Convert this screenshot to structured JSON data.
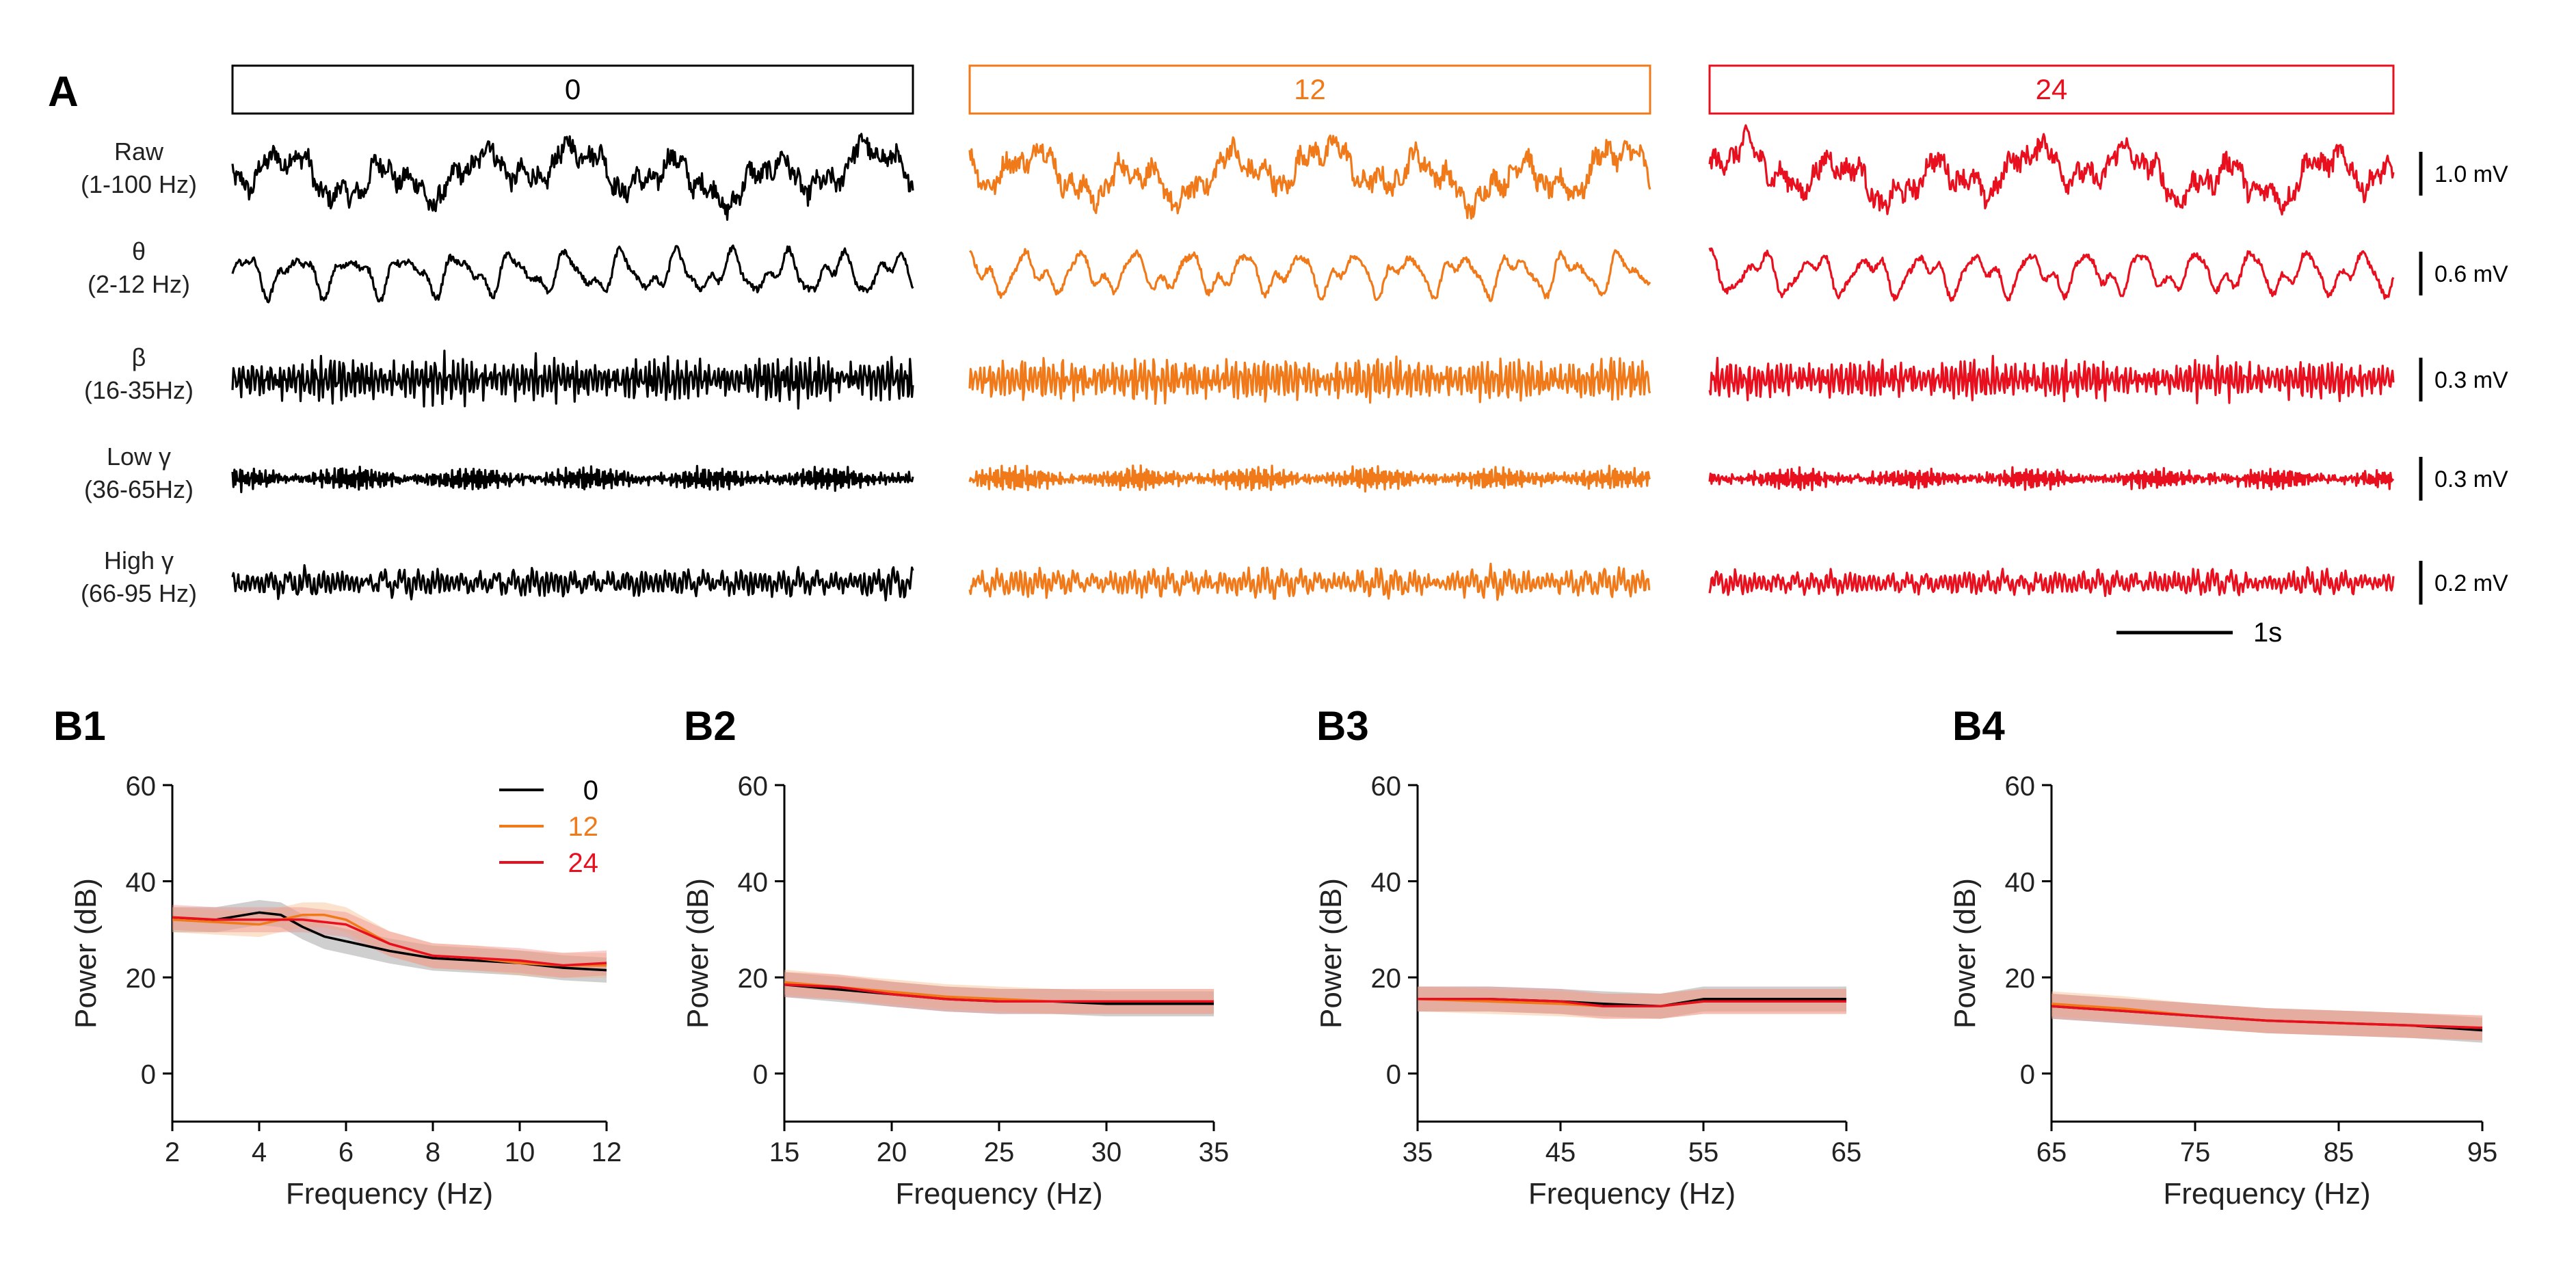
{
  "panel_a": {
    "label": "A",
    "conditions": [
      {
        "name": "0",
        "color": "#000000"
      },
      {
        "name": "12",
        "color": "#f07a1a"
      },
      {
        "name": "24",
        "color": "#e8101e"
      }
    ],
    "bands": [
      {
        "line1": "Raw",
        "line2": "(1-100 Hz)",
        "scale": "1.0 mV"
      },
      {
        "line1": "θ",
        "line2": "(2-12 Hz)",
        "scale": "0.6 mV"
      },
      {
        "line1": "β",
        "line2": "(16-35Hz)",
        "scale": "0.3 mV"
      },
      {
        "line1": "Low γ",
        "line2": "(36-65Hz)",
        "scale": "0.3 mV"
      },
      {
        "line1": "High γ",
        "line2": "(66-95 Hz)",
        "scale": "0.2 mV"
      }
    ],
    "time_scale_label": "1s"
  },
  "chart_data": [
    {
      "type": "line",
      "panel": "B1",
      "xlabel": "Frequency (Hz)",
      "ylabel": "Power (dB)",
      "xlim": [
        2,
        12
      ],
      "ylim": [
        -10,
        60
      ],
      "xticks": [
        2,
        4,
        6,
        8,
        10,
        12
      ],
      "yticks": [
        0,
        20,
        40,
        60
      ],
      "legend": [
        "0",
        "12",
        "24"
      ],
      "legend_position": "top-right",
      "series": [
        {
          "name": "0",
          "color": "#000000",
          "band": "#888888",
          "x": [
            2,
            3,
            4,
            4.5,
            5,
            5.5,
            6,
            7,
            8,
            9,
            10,
            11,
            12
          ],
          "values": [
            32,
            32,
            33.5,
            33,
            30.5,
            28.5,
            27.5,
            25.5,
            24,
            23.5,
            23,
            22,
            21.5
          ]
        },
        {
          "name": "12",
          "color": "#f07a1a",
          "band": "#f5b780",
          "x": [
            2,
            3,
            4,
            5,
            5.5,
            6,
            7,
            8,
            9,
            10,
            11,
            12
          ],
          "values": [
            32,
            31.5,
            31,
            33,
            33,
            32,
            27,
            24.5,
            24,
            23,
            22.5,
            22.5
          ]
        },
        {
          "name": "24",
          "color": "#e8101e",
          "band": "#f08a8a",
          "x": [
            2,
            3,
            4,
            5,
            6,
            7,
            8,
            9,
            10,
            11,
            12
          ],
          "values": [
            32.5,
            32,
            32,
            32,
            31,
            27,
            24.5,
            24,
            23.5,
            22.5,
            23
          ]
        }
      ]
    },
    {
      "type": "line",
      "panel": "B2",
      "xlabel": "Frequency (Hz)",
      "ylabel": "Power (dB)",
      "xlim": [
        15,
        35
      ],
      "ylim": [
        -10,
        60
      ],
      "xticks": [
        15,
        20,
        25,
        30,
        35
      ],
      "yticks": [
        0,
        20,
        40,
        60
      ],
      "series": [
        {
          "name": "0",
          "color": "#000000",
          "band": "#888888",
          "x": [
            15,
            17.5,
            20,
            22.5,
            25,
            27.5,
            30,
            32.5,
            35
          ],
          "values": [
            18.5,
            17.5,
            16.5,
            15.5,
            15,
            15,
            14.5,
            14.5,
            14.5
          ]
        },
        {
          "name": "12",
          "color": "#f07a1a",
          "band": "#f5b780",
          "x": [
            15,
            17.5,
            20,
            22.5,
            25,
            27.5,
            30,
            32.5,
            35
          ],
          "values": [
            19,
            18,
            17,
            16,
            15.5,
            15,
            15,
            15,
            15
          ]
        },
        {
          "name": "24",
          "color": "#e8101e",
          "band": "#f08a8a",
          "x": [
            15,
            17.5,
            20,
            22.5,
            25,
            27.5,
            30,
            32.5,
            35
          ],
          "values": [
            18.5,
            18,
            16.5,
            15.5,
            15,
            15,
            15,
            15,
            15
          ]
        }
      ]
    },
    {
      "type": "line",
      "panel": "B3",
      "xlabel": "Frequency (Hz)",
      "ylabel": "Power (dB)",
      "xlim": [
        35,
        65
      ],
      "ylim": [
        -10,
        60
      ],
      "xticks": [
        35,
        45,
        55,
        65
      ],
      "yticks": [
        0,
        20,
        40,
        60
      ],
      "series": [
        {
          "name": "0",
          "color": "#000000",
          "band": "#888888",
          "x": [
            35,
            40,
            45,
            48,
            52,
            55,
            60,
            65
          ],
          "values": [
            15.5,
            15.5,
            15,
            14.5,
            14,
            15.5,
            15.5,
            15.5
          ]
        },
        {
          "name": "12",
          "color": "#f07a1a",
          "band": "#f5b780",
          "x": [
            35,
            40,
            45,
            48,
            52,
            55,
            60,
            65
          ],
          "values": [
            15.5,
            15,
            14.5,
            14,
            14,
            15,
            15,
            15
          ]
        },
        {
          "name": "24",
          "color": "#e8101e",
          "band": "#f08a8a",
          "x": [
            35,
            40,
            45,
            48,
            52,
            55,
            60,
            65
          ],
          "values": [
            15.5,
            15.5,
            15,
            14,
            14,
            15,
            15,
            15
          ]
        }
      ]
    },
    {
      "type": "line",
      "panel": "B4",
      "xlabel": "Frequency (Hz)",
      "ylabel": "Power (dB)",
      "xlim": [
        65,
        95
      ],
      "ylim": [
        -10,
        60
      ],
      "xticks": [
        65,
        75,
        85,
        95
      ],
      "yticks": [
        0,
        20,
        40,
        60
      ],
      "series": [
        {
          "name": "0",
          "color": "#000000",
          "band": "#888888",
          "x": [
            65,
            70,
            75,
            80,
            85,
            90,
            95
          ],
          "values": [
            14,
            13,
            12,
            11,
            10.5,
            10,
            9
          ]
        },
        {
          "name": "12",
          "color": "#f07a1a",
          "band": "#f5b780",
          "x": [
            65,
            70,
            75,
            80,
            85,
            90,
            95
          ],
          "values": [
            14.5,
            13.5,
            12,
            11,
            10.5,
            10,
            9.5
          ]
        },
        {
          "name": "24",
          "color": "#e8101e",
          "band": "#f08a8a",
          "x": [
            65,
            70,
            75,
            80,
            85,
            90,
            95
          ],
          "values": [
            14,
            13,
            12,
            11,
            10.5,
            10,
            9.5
          ]
        }
      ]
    }
  ]
}
